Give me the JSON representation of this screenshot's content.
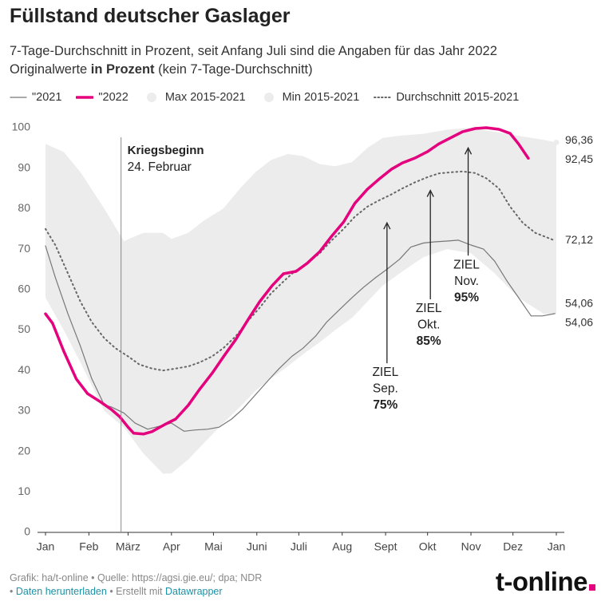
{
  "chart_data": {
    "type": "line",
    "title": "Füllstand deutscher Gaslager",
    "subtitle": "7-Tage-Durchschnitt in Prozent, seit Anfang Juli sind die Angaben für das Jahr 2022",
    "subtitle2": [
      "Originalwerte ",
      "in Prozent",
      " (kein 7-Tage-Durchschnitt)"
    ],
    "xlim": [
      0,
      365
    ],
    "xticks": [
      {
        "value": 0,
        "label": "Jan"
      },
      {
        "value": 31,
        "label": "Feb"
      },
      {
        "value": 59,
        "label": "März"
      },
      {
        "value": 90,
        "label": "Apr"
      },
      {
        "value": 120,
        "label": "Mai"
      },
      {
        "value": 151,
        "label": "Juni"
      },
      {
        "value": 181,
        "label": "Juli"
      },
      {
        "value": 212,
        "label": "Aug"
      },
      {
        "value": 243,
        "label": "Sept"
      },
      {
        "value": 273,
        "label": "Okt"
      },
      {
        "value": 304,
        "label": "Nov"
      },
      {
        "value": 334,
        "label": "Dez"
      },
      {
        "value": 365,
        "label": "Jan"
      }
    ],
    "ylim": [
      0,
      100
    ],
    "yticks": [
      0,
      10,
      20,
      30,
      40,
      50,
      60,
      70,
      80,
      90,
      100
    ],
    "grid": false,
    "series": [
      {
        "name": "Max 2015-2021",
        "color": "#ececec",
        "style": "band-upper",
        "x": [
          0,
          13,
          25,
          42,
          56,
          70,
          84,
          90,
          102,
          113,
          127,
          139,
          150,
          161,
          173,
          184,
          196,
          207,
          219,
          230,
          241,
          253,
          270,
          287,
          304,
          321,
          338,
          356,
          365
        ],
        "values": [
          96,
          94,
          89,
          80,
          72,
          74,
          74,
          72.5,
          74,
          77,
          80,
          85,
          89,
          92,
          93.5,
          93,
          91,
          90.5,
          91.5,
          95,
          97.5,
          98,
          98.5,
          99.5,
          100,
          99,
          98,
          97,
          96.36
        ],
        "value_labels": [
          null,
          null,
          null,
          null,
          null,
          null,
          null,
          null,
          null,
          null,
          null,
          null,
          null,
          null,
          null,
          null,
          null,
          null,
          null,
          null,
          null,
          null,
          null,
          null,
          null,
          null,
          null,
          null,
          "96,36"
        ]
      },
      {
        "name": "Min 2015-2021",
        "color": "#ececec",
        "style": "band-lower",
        "x": [
          0,
          13,
          25,
          42,
          56,
          70,
          84,
          90,
          102,
          113,
          127,
          139,
          150,
          161,
          173,
          184,
          196,
          207,
          219,
          230,
          241,
          253,
          270,
          287,
          304,
          321,
          338,
          356,
          365
        ],
        "values": [
          58,
          50,
          42,
          30,
          26,
          19.5,
          14.5,
          14.6,
          18,
          22,
          27,
          31,
          35,
          38,
          41,
          44,
          47,
          50,
          53,
          57,
          61,
          64,
          68,
          70,
          69,
          64,
          58,
          54,
          54.06
        ],
        "value_labels": [
          null,
          null,
          null,
          null,
          null,
          null,
          null,
          null,
          null,
          null,
          null,
          null,
          null,
          null,
          null,
          null,
          null,
          null,
          null,
          null,
          null,
          null,
          null,
          null,
          null,
          null,
          null,
          null,
          "54,06"
        ]
      },
      {
        "name": "Durchschnitt 2015-2021",
        "color": "#666666",
        "style": "dotted",
        "x": [
          0,
          7,
          16,
          25,
          33,
          42,
          50,
          59,
          67,
          76,
          84,
          93,
          102,
          110,
          119,
          127,
          136,
          144,
          153,
          161,
          170,
          178,
          187,
          196,
          204,
          213,
          221,
          230,
          238,
          247,
          255,
          264,
          273,
          281,
          290,
          298,
          307,
          315,
          324,
          332,
          341,
          350,
          364
        ],
        "values": [
          75,
          71,
          64,
          57,
          52,
          48,
          45.5,
          43.5,
          41.5,
          40.5,
          40,
          40.5,
          41,
          42,
          43.5,
          45.5,
          48.5,
          52,
          55.5,
          59,
          62,
          64.5,
          66.5,
          69,
          72,
          75,
          78,
          80.5,
          82,
          83.5,
          85,
          86.5,
          87.8,
          88.7,
          89,
          89.2,
          88.8,
          87.5,
          85,
          80.5,
          76.5,
          74,
          72.12
        ],
        "value_labels": [
          null,
          null,
          null,
          null,
          null,
          null,
          null,
          null,
          null,
          null,
          null,
          null,
          null,
          null,
          null,
          null,
          null,
          null,
          null,
          null,
          null,
          null,
          null,
          null,
          null,
          null,
          null,
          null,
          null,
          null,
          null,
          null,
          null,
          null,
          null,
          null,
          null,
          null,
          null,
          null,
          null,
          null,
          "72,12"
        ]
      },
      {
        "name": "\"2021",
        "color": "#777777",
        "style": "line",
        "x": [
          0,
          7,
          16,
          25,
          33,
          42,
          47,
          56,
          64,
          73,
          82,
          90,
          99,
          107,
          116,
          124,
          133,
          141,
          150,
          159,
          167,
          176,
          184,
          193,
          201,
          210,
          219,
          227,
          236,
          244,
          253,
          261,
          270,
          278,
          287,
          295,
          304,
          313,
          321,
          330,
          338,
          347,
          355,
          364
        ],
        "values": [
          70.8,
          63,
          54,
          46,
          38,
          31.5,
          31,
          29.5,
          27,
          25.5,
          26.3,
          27,
          25,
          25.3,
          25.5,
          26,
          28,
          30.5,
          34,
          37.5,
          40.5,
          43.5,
          45.5,
          48.5,
          52,
          55,
          58,
          60.5,
          63,
          65,
          67.5,
          70.5,
          71.5,
          71.8,
          72,
          72.2,
          71,
          70,
          67,
          62,
          58,
          53.5,
          53.5,
          54.06
        ],
        "value_labels": [
          null,
          null,
          null,
          null,
          null,
          null,
          null,
          null,
          null,
          null,
          null,
          null,
          null,
          null,
          null,
          null,
          null,
          null,
          null,
          null,
          null,
          null,
          null,
          null,
          null,
          null,
          null,
          null,
          null,
          null,
          null,
          null,
          null,
          null,
          null,
          null,
          null,
          null,
          null,
          null,
          null,
          null,
          null,
          "54,06"
        ]
      },
      {
        "name": "\"2022",
        "color": "#e5007d",
        "style": "thick",
        "x": [
          0,
          5,
          13,
          22,
          30,
          39,
          47,
          53,
          59,
          63,
          70,
          76,
          85,
          93,
          102,
          110,
          119,
          128,
          136,
          145,
          153,
          162,
          170,
          179,
          187,
          196,
          204,
          213,
          221,
          230,
          238,
          247,
          255,
          264,
          273,
          281,
          290,
          298,
          307,
          315,
          324,
          332,
          338,
          345
        ],
        "values": [
          54,
          51.7,
          44.8,
          37.9,
          34.3,
          32.3,
          30.4,
          28.6,
          26,
          24.5,
          24.3,
          24.9,
          26.6,
          28,
          31.4,
          35.3,
          39.3,
          43.8,
          47.7,
          52.7,
          57,
          61,
          63.9,
          64.5,
          66.5,
          69.4,
          73,
          76.7,
          81.3,
          84.8,
          87.2,
          89.7,
          91.3,
          92.5,
          94.1,
          96,
          97.6,
          99,
          99.8,
          100,
          99.6,
          98.6,
          96,
          92.45
        ],
        "value_labels": [
          null,
          null,
          null,
          null,
          null,
          null,
          null,
          null,
          null,
          null,
          null,
          null,
          null,
          null,
          null,
          null,
          null,
          null,
          null,
          null,
          null,
          null,
          null,
          null,
          null,
          null,
          null,
          null,
          null,
          null,
          null,
          null,
          null,
          null,
          null,
          null,
          null,
          null,
          null,
          null,
          null,
          null,
          null,
          "92,45"
        ]
      }
    ],
    "legend_order": [
      3,
      4,
      0,
      1,
      2
    ],
    "event": {
      "x": 54,
      "title": "Kriegsbeginn",
      "text": "24. Februar"
    },
    "targets": [
      {
        "x": 244,
        "y": 76.5,
        "from": 41.8,
        "lines": [
          "ZIEL",
          "Sep.",
          "75%"
        ]
      },
      {
        "x": 275,
        "y": 84.5,
        "from": 57.6,
        "lines": [
          "ZIEL",
          "Okt.",
          "85%"
        ]
      },
      {
        "x": 302,
        "y": 95,
        "from": 68.4,
        "lines": [
          "ZIEL",
          "Nov.",
          "95%"
        ]
      }
    ],
    "footer": {
      "line1": "Grafik: ha/t-online • Quelle: https://agsi.gie.eu/; dpa; NDR",
      "sep1": "• ",
      "download": "Daten herunterladen",
      "sep2": " • Erstellt mit ",
      "tool": "Datawrapper",
      "logo": "t-online"
    }
  }
}
